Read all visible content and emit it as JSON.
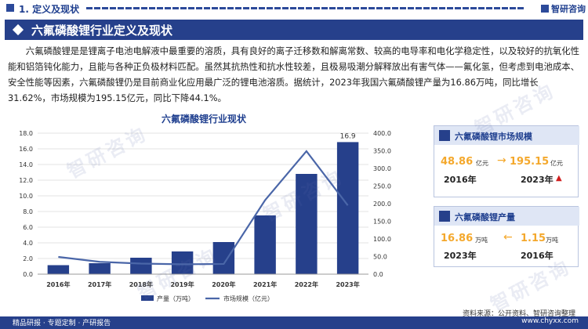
{
  "header": {
    "section": "1. 定义及现状",
    "logo": "智研咨询"
  },
  "title": "六氟磷酸锂行业定义及现状",
  "paragraph": "六氟磷酸锂是是锂离子电池电解液中最重要的溶质，具有良好的离子迁移数和解离常数、较高的电导率和电化学稳定性，以及较好的抗氧化性能和铝箔钝化能力，且能与各种正负极材料匹配。虽然其抗热性和抗水性较差，且极易吸潮分解释放出有害气体——氟化氢，但考虑到电池成本、安全性能等因素，六氟磷酸锂仍是目前商业化应用最广泛的锂电池溶质。据统计，2023年我国六氟磷酸锂产量为16.86万吨，同比增长31.62%，市场规模为195.15亿元，同比下降44.1%。",
  "chart_data": {
    "type": "bar",
    "title": "六氟磷酸锂行业现状",
    "categories": [
      "2016年",
      "2017年",
      "2018年",
      "2019年",
      "2020年",
      "2021年",
      "2022年",
      "2023年"
    ],
    "series": [
      {
        "name": "产量（万吨）",
        "type": "bar",
        "axis": "left",
        "values": [
          1.15,
          1.4,
          2.1,
          2.9,
          4.1,
          7.5,
          12.8,
          16.86
        ]
      },
      {
        "name": "市场规模（亿元）",
        "type": "line",
        "axis": "right",
        "values": [
          48.86,
          35,
          30,
          28,
          29,
          210,
          349,
          195.15
        ]
      }
    ],
    "bar_label": "16.9",
    "y_left": {
      "range": [
        0,
        18
      ],
      "ticks": [
        "0.0",
        "2.0",
        "4.0",
        "6.0",
        "8.0",
        "10.0",
        "12.0",
        "14.0",
        "16.0",
        "18.0"
      ]
    },
    "y_right": {
      "range": [
        0,
        400
      ],
      "ticks": [
        "0.0",
        "50.0",
        "100.0",
        "150.0",
        "200.0",
        "250.0",
        "300.0",
        "350.0",
        "400.0"
      ]
    },
    "legend_position": "bottom",
    "colors": {
      "bar": "#26408b",
      "line": "#4a66a8"
    }
  },
  "cards": [
    {
      "title": "六氟磷酸锂市场规模",
      "left_value": "48.86",
      "left_unit": "亿元",
      "left_year": "2016年",
      "right_value": "195.15",
      "right_unit": "亿元",
      "right_year": "2023年",
      "arrow": "→",
      "trend_icon": "▲"
    },
    {
      "title": "六氟磷酸锂产量",
      "left_value": "16.86",
      "left_unit": "万吨",
      "left_year": "2023年",
      "right_value": "1.15",
      "right_unit": "万吨",
      "right_year": "2016年",
      "arrow": "←"
    }
  ],
  "source": "资料来源：公开资料、智研咨询整理",
  "footer": {
    "left": "精品研报 · 专题定制 · 产研报告",
    "right": "www.chyxx.com"
  },
  "watermark": "智研咨询"
}
